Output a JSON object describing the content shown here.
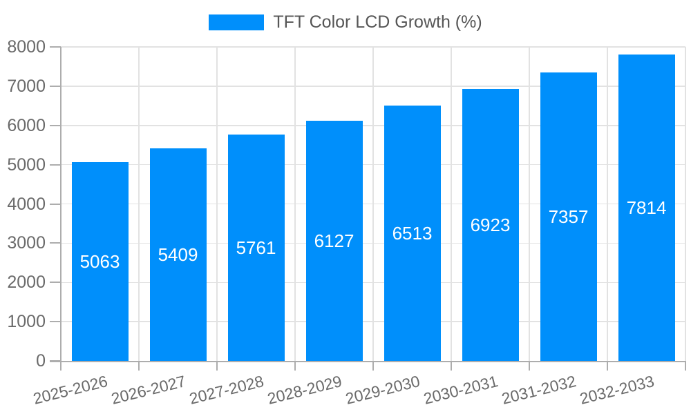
{
  "legend": {
    "label": "TFT Color LCD Growth (%)"
  },
  "colors": {
    "bar": "#008FFB",
    "grid": "#e2e2e2",
    "axis": "#adadad",
    "axis_label": "#6a6a6a",
    "legend_text": "#565656",
    "value_label": "#ffffff",
    "background": "#ffffff"
  },
  "chart_data": {
    "type": "bar",
    "title": "",
    "categories": [
      "2025-2026",
      "2026-2027",
      "2027-2028",
      "2028-2029",
      "2029-2030",
      "2030-2031",
      "2031-2032",
      "2032-2033"
    ],
    "series": [
      {
        "name": "TFT Color LCD Growth (%)",
        "values": [
          5063,
          5409,
          5761,
          6127,
          6513,
          6923,
          7357,
          7814
        ]
      }
    ],
    "xlabel": "",
    "ylabel": "",
    "ylim": [
      0,
      8000
    ],
    "yticks": [
      0,
      1000,
      2000,
      3000,
      4000,
      5000,
      6000,
      7000,
      8000
    ],
    "grid": true,
    "legend_position": "top",
    "value_labels": "inside-center"
  }
}
